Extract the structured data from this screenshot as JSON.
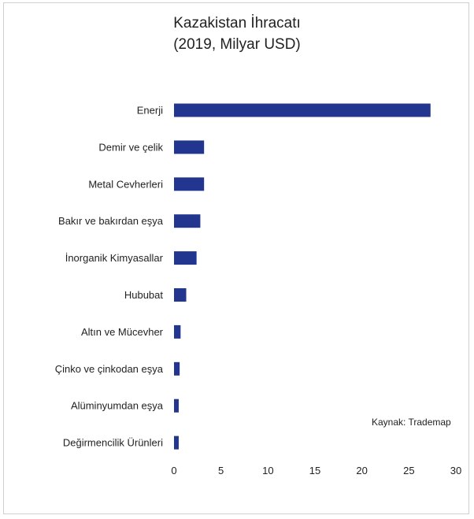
{
  "chart_data": {
    "type": "bar",
    "orientation": "horizontal",
    "title": "Kazakistan İhracatı",
    "subtitle": "(2019, Milyar USD)",
    "categories": [
      "Enerji",
      "Demir ve çelik",
      "Metal Cevherleri",
      "Bakır ve bakırdan eşya",
      "İnorganik Kimyasallar",
      "Hububat",
      "Altın ve Mücevher",
      "Çinko ve çinkodan eşya",
      "Alüminyumdan eşya",
      "Değirmencilik Ürünleri"
    ],
    "values": [
      27.3,
      3.2,
      3.2,
      2.8,
      2.4,
      1.3,
      0.7,
      0.6,
      0.5,
      0.5
    ],
    "xlim": [
      0,
      30
    ],
    "xticks": [
      0,
      5,
      10,
      15,
      20,
      25,
      30
    ],
    "grid": false,
    "legend": "none",
    "bar_color": "#22358f",
    "source_note": "Kaynak: Trademap"
  }
}
